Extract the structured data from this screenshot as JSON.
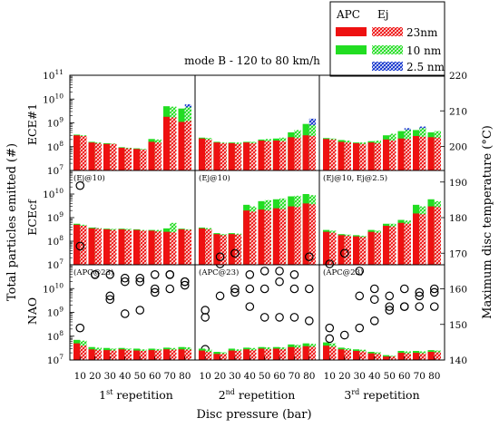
{
  "chart_data": {
    "type": "bar",
    "title": "mode B - 120 to 80 km/h",
    "xlabel": "Disc pressure (bar)",
    "ylabel": "Total particles emitted (#)",
    "y2label": "Maximum disc temperature (°C)",
    "yscale": "log",
    "ylim": [
      10000000,
      100000000000
    ],
    "yticks": [
      "10^7",
      "10^8",
      "10^9",
      "10^10",
      "10^11"
    ],
    "y2lim": [
      140,
      220
    ],
    "y2ticks": [
      "140",
      "150",
      "160",
      "170",
      "180",
      "190",
      "200",
      "210",
      "220"
    ],
    "categories": [
      "10",
      "20",
      "30",
      "40",
      "50",
      "60",
      "70",
      "80"
    ],
    "legend": {
      "placement": "top-right",
      "headers": [
        "APC",
        "Ej"
      ],
      "entries": [
        {
          "name": "23nm",
          "color": "#ee1111",
          "hatch": "#ee1111"
        },
        {
          "name": "10 nm",
          "color": "#22dd22",
          "hatch": "#22dd22"
        },
        {
          "name": "2.5 nm",
          "color": "",
          "hatch": "#1133cc"
        }
      ]
    },
    "rows": [
      "ECE#1",
      "ECEcf",
      "NAO"
    ],
    "repetitions": [
      {
        "label": "1",
        "sup": "st",
        "suffix": " repetition"
      },
      {
        "label": "2",
        "sup": "nd",
        "suffix": " repetition"
      },
      {
        "label": "3",
        "sup": "rd",
        "suffix": " repetition"
      }
    ],
    "panels": [
      {
        "row": 0,
        "col": 0,
        "note": "",
        "apc23": [
          300000000.0,
          150000000.0,
          130000000.0,
          90000000.0,
          80000000.0,
          160000000.0,
          1800000000.0,
          1100000000.0
        ],
        "apc10": [
          320000000.0,
          160000000.0,
          140000000.0,
          95000000.0,
          85000000.0,
          210000000.0,
          5000000000.0,
          4000000000.0
        ],
        "ej23": [
          280000000.0,
          140000000.0,
          130000000.0,
          85000000.0,
          75000000.0,
          150000000.0,
          1700000000.0,
          1200000000.0
        ],
        "ej10": [
          300000000.0,
          150000000.0,
          135000000.0,
          90000000.0,
          80000000.0,
          200000000.0,
          4800000000.0,
          4500000000.0
        ],
        "ej25": [
          0,
          0,
          0,
          0,
          0,
          0,
          0,
          6000000000.0
        ],
        "temp": [
          149,
          176,
          164,
          162,
          162,
          160,
          164,
          161
        ]
      },
      {
        "row": 0,
        "col": 1,
        "note": "",
        "apc23": [
          220000000.0,
          150000000.0,
          140000000.0,
          150000000.0,
          180000000.0,
          180000000.0,
          250000000.0,
          300000000.0
        ],
        "apc10": [
          240000000.0,
          160000000.0,
          150000000.0,
          160000000.0,
          200000000.0,
          220000000.0,
          400000000.0,
          900000000.0
        ],
        "ej23": [
          200000000.0,
          140000000.0,
          130000000.0,
          140000000.0,
          170000000.0,
          170000000.0,
          230000000.0,
          280000000.0
        ],
        "ej10": [
          230000000.0,
          150000000.0,
          150000000.0,
          160000000.0,
          210000000.0,
          240000000.0,
          500000000.0,
          800000000.0
        ],
        "ej25": [
          0,
          0,
          0,
          0,
          0,
          0,
          0,
          1500000000.0
        ],
        "temp": [
          152,
          167,
          160,
          155,
          152,
          152,
          152,
          151
        ]
      },
      {
        "row": 0,
        "col": 2,
        "note": "",
        "apc23": [
          210000000.0,
          160000000.0,
          140000000.0,
          150000000.0,
          200000000.0,
          220000000.0,
          280000000.0,
          250000000.0
        ],
        "apc10": [
          230000000.0,
          190000000.0,
          150000000.0,
          170000000.0,
          300000000.0,
          450000000.0,
          500000000.0,
          400000000.0
        ],
        "ej23": [
          200000000.0,
          150000000.0,
          130000000.0,
          140000000.0,
          180000000.0,
          210000000.0,
          260000000.0,
          240000000.0
        ],
        "ej10": [
          220000000.0,
          180000000.0,
          150000000.0,
          180000000.0,
          350000000.0,
          500000000.0,
          600000000.0,
          450000000.0
        ],
        "ej25": [
          0,
          0,
          0,
          0,
          0,
          600000000.0,
          700000000.0,
          0
        ],
        "temp": [
          149,
          174,
          158,
          157,
          158,
          160,
          159,
          160
        ]
      },
      {
        "row": 1,
        "col": 0,
        "note": "(Ej@10)",
        "apc23": [
          500000000.0,
          350000000.0,
          320000000.0,
          320000000.0,
          300000000.0,
          280000000.0,
          250000000.0,
          320000000.0
        ],
        "apc10": [
          550000000.0,
          380000000.0,
          340000000.0,
          340000000.0,
          320000000.0,
          300000000.0,
          350000000.0,
          340000000.0
        ],
        "ej23": [
          450000000.0,
          340000000.0,
          300000000.0,
          300000000.0,
          280000000.0,
          260000000.0,
          240000000.0,
          300000000.0
        ],
        "ej10": [
          500000000.0,
          360000000.0,
          330000000.0,
          330000000.0,
          300000000.0,
          300000000.0,
          600000000.0,
          320000000.0
        ],
        "ej25": [
          0,
          0,
          0,
          0,
          0,
          0,
          0,
          0
        ],
        "temp": [
          189,
          164,
          157,
          153,
          154,
          159,
          160,
          162
        ]
      },
      {
        "row": 1,
        "col": 1,
        "note": "(Ej@10)",
        "apc23": [
          350000000.0,
          200000000.0,
          200000000.0,
          2000000000.0,
          2200000000.0,
          2500000000.0,
          3000000000.0,
          4000000000.0
        ],
        "apc10": [
          380000000.0,
          220000000.0,
          220000000.0,
          3500000000.0,
          5000000000.0,
          6000000000.0,
          8000000000.0,
          10000000000.0
        ],
        "ej23": [
          320000000.0,
          180000000.0,
          190000000.0,
          1800000000.0,
          2000000000.0,
          2300000000.0,
          2800000000.0,
          3700000000.0
        ],
        "ej10": [
          360000000.0,
          200000000.0,
          210000000.0,
          3000000000.0,
          5500000000.0,
          6500000000.0,
          8500000000.0,
          9000000000.0
        ],
        "ej25": [
          0,
          0,
          0,
          0,
          0,
          0,
          0,
          0
        ],
        "temp": [
          143,
          169,
          170,
          160,
          160,
          162,
          160,
          160
        ]
      },
      {
        "row": 1,
        "col": 2,
        "note": "(Ej@10, Ej@2.5)",
        "apc23": [
          250000000.0,
          180000000.0,
          160000000.0,
          250000000.0,
          450000000.0,
          600000000.0,
          1500000000.0,
          3000000000.0
        ],
        "apc10": [
          300000000.0,
          200000000.0,
          180000000.0,
          300000000.0,
          550000000.0,
          800000000.0,
          3500000000.0,
          6000000000.0
        ],
        "ej23": [
          230000000.0,
          170000000.0,
          150000000.0,
          230000000.0,
          420000000.0,
          550000000.0,
          1400000000.0,
          2800000000.0
        ],
        "ej10": [
          280000000.0,
          190000000.0,
          170000000.0,
          280000000.0,
          550000000.0,
          750000000.0,
          3000000000.0,
          5000000000.0
        ],
        "ej25": [
          0,
          0,
          0,
          0,
          0,
          0,
          0,
          0
        ],
        "temp": [
          167,
          170,
          165,
          160,
          155,
          155,
          158,
          155
        ]
      },
      {
        "row": 2,
        "col": 0,
        "note": "(APC@23)",
        "apc23": [
          50000000.0,
          28000000.0,
          26000000.0,
          28000000.0,
          25000000.0,
          26000000.0,
          28000000.0,
          28000000.0
        ],
        "apc10": [
          70000000.0,
          35000000.0,
          32000000.0,
          32000000.0,
          30000000.0,
          30000000.0,
          33000000.0,
          35000000.0
        ],
        "ej23": [
          40000000.0,
          26000000.0,
          25000000.0,
          26000000.0,
          24000000.0,
          25000000.0,
          27000000.0,
          27000000.0
        ],
        "ej10": [
          65000000.0,
          33000000.0,
          30000000.0,
          30000000.0,
          28000000.0,
          29000000.0,
          32000000.0,
          34000000.0
        ],
        "ej25": [
          0,
          0,
          0,
          0,
          0,
          0,
          0,
          0
        ],
        "temp": [
          172,
          164,
          158,
          163,
          163,
          164,
          164,
          162
        ]
      },
      {
        "row": 2,
        "col": 1,
        "note": "(APC@23)",
        "apc23": [
          25000000.0,
          18000000.0,
          25000000.0,
          28000000.0,
          30000000.0,
          30000000.0,
          35000000.0,
          38000000.0
        ],
        "apc10": [
          30000000.0,
          22000000.0,
          30000000.0,
          33000000.0,
          35000000.0,
          35000000.0,
          45000000.0,
          50000000.0
        ],
        "ej23": [
          22000000.0,
          18000000.0,
          24000000.0,
          26000000.0,
          28000000.0,
          28000000.0,
          33000000.0,
          36000000.0
        ],
        "ej10": [
          28000000.0,
          21000000.0,
          28000000.0,
          32000000.0,
          34000000.0,
          34000000.0,
          43000000.0,
          48000000.0
        ],
        "ej25": [
          0,
          0,
          0,
          0,
          0,
          0,
          0,
          0
        ],
        "temp": [
          154,
          158,
          159,
          164,
          165,
          165,
          164,
          169
        ]
      },
      {
        "row": 2,
        "col": 2,
        "note": "(APC@23)",
        "apc23": [
          40000000.0,
          28000000.0,
          24000000.0,
          19000000.0,
          14000000.0,
          20000000.0,
          20000000.0,
          22000000.0
        ],
        "apc10": [
          55000000.0,
          33000000.0,
          28000000.0,
          22000000.0,
          16000000.0,
          24000000.0,
          24000000.0,
          26000000.0
        ],
        "ej23": [
          36000000.0,
          26000000.0,
          23000000.0,
          18000000.0,
          14000000.0,
          19000000.0,
          19000000.0,
          21000000.0
        ],
        "ej10": [
          50000000.0,
          31000000.0,
          27000000.0,
          21000000.0,
          15000000.0,
          23000000.0,
          23000000.0,
          25000000.0
        ],
        "ej25": [
          0,
          0,
          0,
          0,
          0,
          0,
          0,
          0
        ],
        "temp": [
          146,
          147,
          149,
          151,
          154,
          155,
          155,
          159
        ]
      }
    ]
  }
}
